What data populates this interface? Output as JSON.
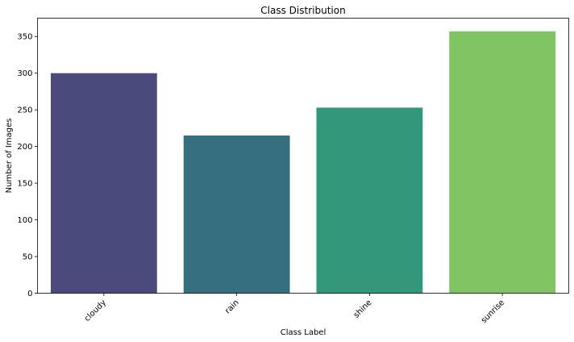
{
  "chart_data": {
    "type": "bar",
    "title": "Class Distribution",
    "xlabel": "Class Label",
    "ylabel": "Number of Images",
    "categories": [
      "cloudy",
      "rain",
      "shine",
      "sunrise"
    ],
    "values": [
      300,
      215,
      253,
      357
    ],
    "colors": [
      "#4a4b7c",
      "#367080",
      "#33977b",
      "#81c463"
    ],
    "ylim": [
      0,
      375
    ],
    "yticks": [
      0,
      50,
      100,
      150,
      200,
      250,
      300,
      350
    ],
    "grid": false,
    "legend": "none"
  }
}
